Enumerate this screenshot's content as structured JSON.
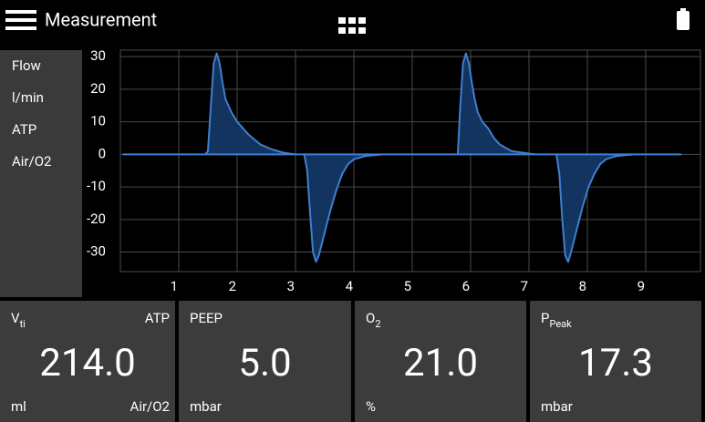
{
  "header": {
    "title": "Measurement"
  },
  "side_labels": [
    "Flow",
    "l/min",
    "ATP",
    "Air/O2"
  ],
  "chart_data": {
    "type": "line",
    "x": [
      0.05,
      1.0,
      1.45,
      1.5,
      1.55,
      1.6,
      1.65,
      1.7,
      1.75,
      1.8,
      1.9,
      2.0,
      2.1,
      2.2,
      2.4,
      2.6,
      2.8,
      3.0,
      3.15,
      3.2,
      3.25,
      3.3,
      3.35,
      3.4,
      3.5,
      3.6,
      3.7,
      3.8,
      3.9,
      4.0,
      4.2,
      4.5,
      5.0,
      5.5,
      5.78,
      5.82,
      5.87,
      5.92,
      5.97,
      6.02,
      6.07,
      6.12,
      6.2,
      6.3,
      6.4,
      6.5,
      6.7,
      6.9,
      7.1,
      7.3,
      7.47,
      7.52,
      7.57,
      7.62,
      7.67,
      7.72,
      7.82,
      7.92,
      8.02,
      8.12,
      8.22,
      8.32,
      8.5,
      8.8,
      9.2,
      9.6
    ],
    "values": [
      0,
      0,
      0,
      1,
      15,
      28,
      31,
      28,
      22,
      17,
      13,
      10,
      8,
      6,
      3,
      1.5,
      0.5,
      0,
      0,
      -5,
      -18,
      -30,
      -33,
      -31,
      -24,
      -17,
      -11,
      -6,
      -3,
      -1.5,
      -0.5,
      0,
      0,
      0,
      0,
      14,
      28,
      31,
      28,
      22,
      17,
      13,
      10,
      8,
      5,
      3,
      1,
      0.5,
      0,
      0,
      0,
      -6,
      -20,
      -31,
      -33,
      -30,
      -23,
      -16,
      -10,
      -6,
      -3,
      -1.5,
      -0.5,
      0,
      0,
      0
    ],
    "color": "#3f7fcf",
    "fill_color": "#12345e",
    "xlim": [
      0,
      10
    ],
    "xticks": [
      1,
      2,
      3,
      4,
      5,
      6,
      7,
      8,
      9
    ],
    "ylim": [
      -36,
      32
    ],
    "yticks": [
      -30,
      -20,
      -10,
      0,
      10,
      20,
      30
    ],
    "grid": true
  },
  "tiles": [
    {
      "label": "V",
      "label_sub": "ti",
      "corner": "ATP",
      "value": "214.0",
      "unit": "ml",
      "extra": "Air/O2"
    },
    {
      "label": "PEEP",
      "value": "5.0",
      "unit": "mbar"
    },
    {
      "label": "O",
      "label_sub": "2",
      "value": "21.0",
      "unit": "%"
    },
    {
      "label": "P",
      "label_sub": "Peak",
      "value": "17.3",
      "unit": "mbar"
    }
  ]
}
